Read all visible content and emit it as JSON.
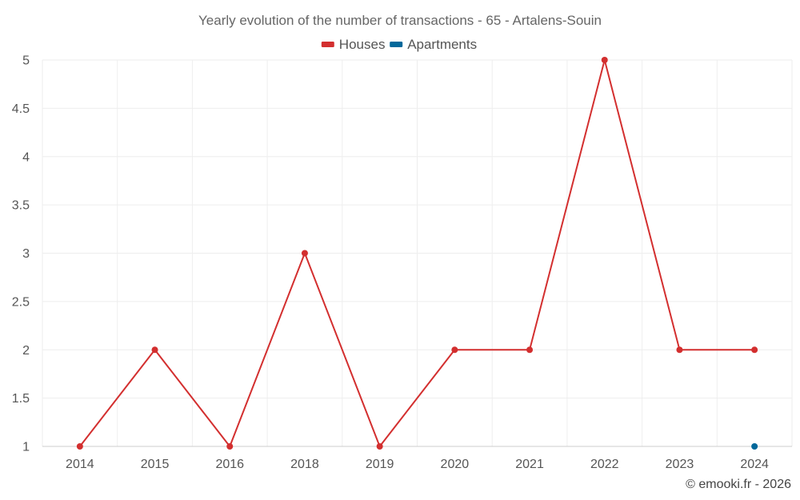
{
  "chart_data": {
    "type": "line",
    "title": "Yearly evolution of the number of transactions - 65 - Artalens-Souin",
    "categories": [
      "2014",
      "2015",
      "2016",
      "2018",
      "2019",
      "2020",
      "2021",
      "2022",
      "2023",
      "2024"
    ],
    "series": [
      {
        "name": "Houses",
        "color": "#d32f2f",
        "values": [
          1,
          2,
          1,
          3,
          1,
          2,
          2,
          5,
          2,
          2
        ]
      },
      {
        "name": "Apartments",
        "color": "#01689b",
        "values": [
          null,
          null,
          null,
          null,
          null,
          null,
          null,
          null,
          null,
          1
        ]
      }
    ],
    "yticks": [
      "1",
      "1.5",
      "2",
      "2.5",
      "3",
      "3.5",
      "4",
      "4.5",
      "5"
    ],
    "ylim": [
      1,
      5
    ],
    "grid": true,
    "legend_position": "top-center"
  },
  "credit": "© emooki.fr - 2026"
}
